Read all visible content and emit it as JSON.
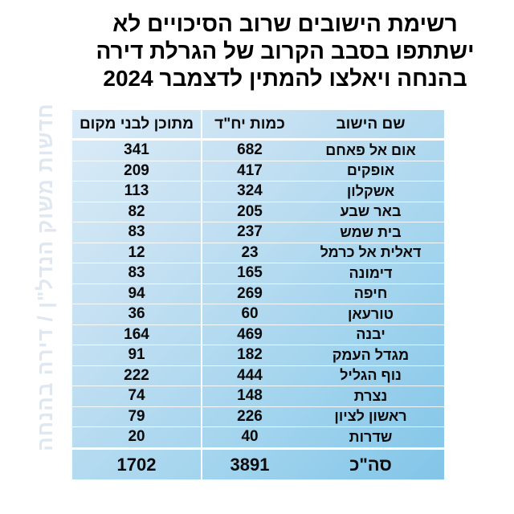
{
  "title": {
    "line1": "רשימת הישובים שרוב הסיכויים לא",
    "line2": "ישתתפו בסבב הקרוב של הגרלת דירה",
    "line3": "בהנחה ויאלצו להמתין לדצמבר 2024"
  },
  "watermark": "חדשות משוק הנדל\"ן / דירה בהנחה",
  "colors": {
    "table_gradient_start": "#dbecf8",
    "table_gradient_end": "#82c5e8",
    "watermark_text": "#dfe8f1",
    "text": "#000000"
  },
  "chart_data": {
    "type": "table",
    "title": "רשימת הישובים שרוב הסיכויים לא ישתתפו בסבב הקרוב של הגרלת דירה בהנחה ויאלצו להמתין לדצמבר 2024",
    "columns": [
      "שם הישוב",
      "כמות יח\"ד",
      "מתוכן לבני מקום"
    ],
    "rows": [
      [
        "אום אל פאחם",
        682,
        341
      ],
      [
        "אופקים",
        417,
        209
      ],
      [
        "אשקלון",
        324,
        113
      ],
      [
        "באר שבע",
        205,
        82
      ],
      [
        "בית שמש",
        237,
        83
      ],
      [
        "דאלית אל כרמל",
        23,
        12
      ],
      [
        "דימונה",
        165,
        83
      ],
      [
        "חיפה",
        269,
        94
      ],
      [
        "טורעאן",
        60,
        36
      ],
      [
        "יבנה",
        469,
        164
      ],
      [
        "מגדל העמק",
        182,
        91
      ],
      [
        "נוף הגליל",
        444,
        222
      ],
      [
        "נצרת",
        148,
        74
      ],
      [
        "ראשון לציון",
        226,
        79
      ],
      [
        "שדרות",
        40,
        20
      ]
    ],
    "total_row": [
      "סה\"כ",
      3891,
      1702
    ],
    "layout": {
      "direction": "rtl",
      "header_row": true,
      "total_row_emphasized": true
    }
  }
}
